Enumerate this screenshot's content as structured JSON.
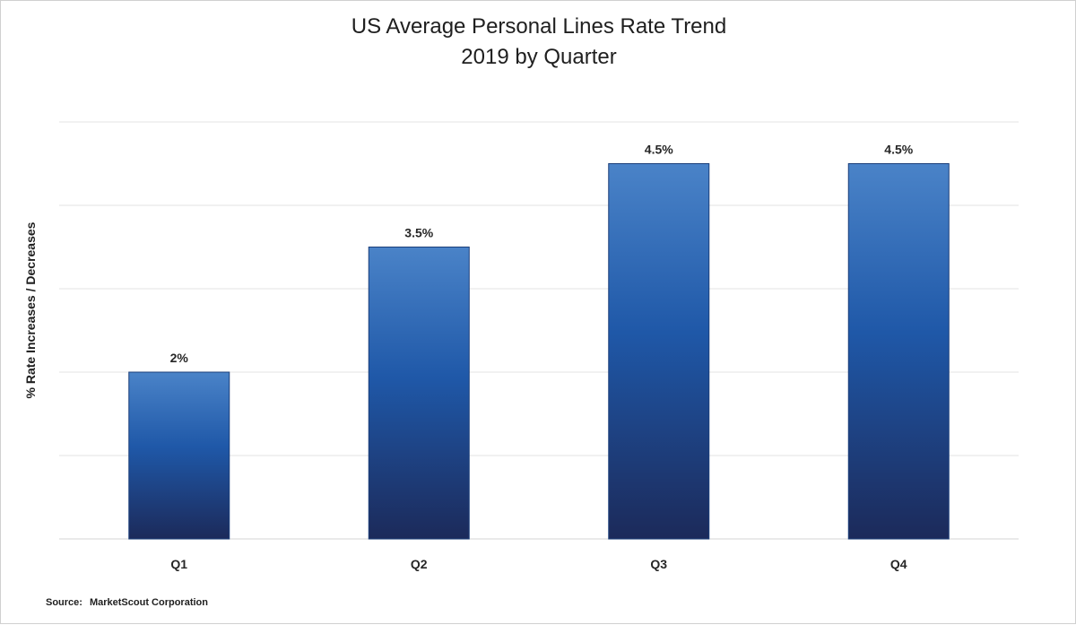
{
  "chart_data": {
    "type": "bar",
    "title": "US Average Personal Lines Rate Trend",
    "subtitle": "2019 by Quarter",
    "ylabel": "% Rate Increases / Decreases",
    "xlabel": "",
    "categories": [
      "Q1",
      "Q2",
      "Q3",
      "Q4"
    ],
    "values": [
      2,
      3.5,
      4.5,
      4.5
    ],
    "data_labels": [
      "2%",
      "3.5%",
      "4.5%",
      "4.5%"
    ],
    "ylim": [
      0,
      5
    ],
    "grid": true,
    "legend": "none",
    "bar_color_top": "#4a83c8",
    "bar_color_mid": "#1f58a8",
    "bar_color_bottom": "#1c2a5a",
    "grid_color": "#e3e3e3"
  },
  "source": {
    "label": "Source:",
    "text": "MarketScout Corporation"
  }
}
